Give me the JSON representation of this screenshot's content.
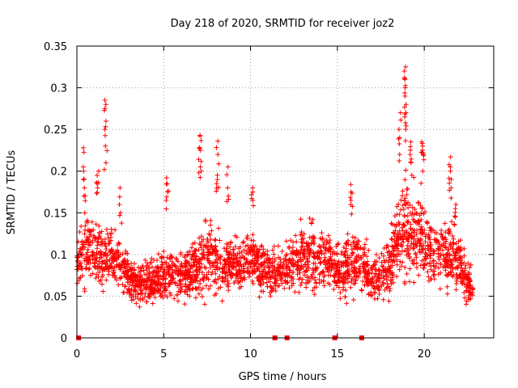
{
  "chart_data": {
    "type": "scatter",
    "title": "Day 218 of 2020, SRMTID for receiver joz2",
    "xlabel": "GPS time / hours",
    "ylabel": "SRMTID / TECUs",
    "xlim": [
      0,
      24
    ],
    "ylim": [
      0,
      0.35
    ],
    "grid": true,
    "xticks": [
      0,
      5,
      10,
      15,
      20
    ],
    "xtick_labels": [
      "0",
      "5",
      "10",
      "15",
      "20"
    ],
    "yticks": [
      0,
      0.05,
      0.1,
      0.15,
      0.2,
      0.25,
      0.3,
      0.35
    ],
    "ytick_labels": [
      "0",
      "0.05",
      "0.1",
      "0.15",
      "0.2",
      "0.25",
      "0.3",
      "0.35"
    ],
    "marker": "plus",
    "color": "#ff0000",
    "gap_markers_x": [
      0.1,
      11.4,
      12.1,
      14.85,
      16.4
    ],
    "envelope": {
      "x": [
        0.0,
        0.5,
        1.0,
        1.5,
        2.0,
        2.5,
        3.0,
        3.5,
        4.0,
        4.5,
        5.0,
        5.5,
        6.0,
        6.5,
        7.0,
        7.5,
        8.0,
        8.5,
        9.0,
        9.5,
        10.0,
        10.5,
        11.0,
        11.5,
        12.0,
        12.5,
        13.0,
        13.5,
        14.0,
        14.5,
        15.0,
        15.5,
        16.0,
        16.5,
        17.0,
        17.5,
        18.0,
        18.5,
        19.0,
        19.5,
        20.0,
        20.5,
        21.0,
        21.5,
        22.0,
        22.5,
        22.8
      ],
      "center": [
        0.09,
        0.11,
        0.1,
        0.095,
        0.1,
        0.09,
        0.07,
        0.065,
        0.065,
        0.07,
        0.075,
        0.08,
        0.075,
        0.08,
        0.085,
        0.1,
        0.09,
        0.085,
        0.09,
        0.085,
        0.1,
        0.085,
        0.08,
        0.08,
        0.085,
        0.09,
        0.095,
        0.1,
        0.09,
        0.095,
        0.08,
        0.085,
        0.095,
        0.085,
        0.07,
        0.075,
        0.085,
        0.12,
        0.13,
        0.12,
        0.12,
        0.1,
        0.1,
        0.1,
        0.09,
        0.07,
        0.06
      ],
      "spread": [
        0.03,
        0.05,
        0.05,
        0.04,
        0.04,
        0.035,
        0.03,
        0.03,
        0.03,
        0.03,
        0.035,
        0.035,
        0.035,
        0.04,
        0.045,
        0.05,
        0.045,
        0.04,
        0.04,
        0.035,
        0.045,
        0.035,
        0.03,
        0.03,
        0.035,
        0.04,
        0.045,
        0.045,
        0.04,
        0.04,
        0.035,
        0.04,
        0.045,
        0.04,
        0.03,
        0.035,
        0.04,
        0.06,
        0.07,
        0.06,
        0.055,
        0.045,
        0.045,
        0.045,
        0.04,
        0.03,
        0.025
      ]
    },
    "peaks": [
      {
        "x": 0.4,
        "values": [
          0.228,
          0.205,
          0.2,
          0.18,
          0.17
        ]
      },
      {
        "x": 1.2,
        "values": [
          0.2,
          0.195,
          0.185,
          0.18
        ]
      },
      {
        "x": 1.65,
        "values": [
          0.285,
          0.28,
          0.26,
          0.25,
          0.23,
          0.21
        ]
      },
      {
        "x": 2.5,
        "values": [
          0.18,
          0.16,
          0.15
        ]
      },
      {
        "x": 5.2,
        "values": [
          0.192,
          0.185,
          0.175,
          0.165
        ]
      },
      {
        "x": 7.1,
        "values": [
          0.243,
          0.242,
          0.227,
          0.225,
          0.205,
          0.2
        ]
      },
      {
        "x": 8.1,
        "values": [
          0.236,
          0.22,
          0.195,
          0.19,
          0.185
        ]
      },
      {
        "x": 8.7,
        "values": [
          0.205,
          0.18,
          0.17
        ]
      },
      {
        "x": 10.1,
        "values": [
          0.18,
          0.175,
          0.165
        ]
      },
      {
        "x": 15.8,
        "values": [
          0.184,
          0.175,
          0.165,
          0.16
        ]
      },
      {
        "x": 18.6,
        "values": [
          0.27,
          0.25,
          0.24,
          0.22
        ]
      },
      {
        "x": 18.9,
        "values": [
          0.325,
          0.32,
          0.31,
          0.3,
          0.29,
          0.28,
          0.27,
          0.265,
          0.25
        ]
      },
      {
        "x": 19.2,
        "values": [
          0.235,
          0.225,
          0.22,
          0.21
        ]
      },
      {
        "x": 19.9,
        "values": [
          0.235,
          0.233,
          0.23,
          0.225,
          0.22,
          0.2
        ]
      },
      {
        "x": 21.5,
        "values": [
          0.217,
          0.205,
          0.2,
          0.19,
          0.18
        ]
      },
      {
        "x": 21.8,
        "values": [
          0.16,
          0.155,
          0.145
        ]
      }
    ]
  }
}
